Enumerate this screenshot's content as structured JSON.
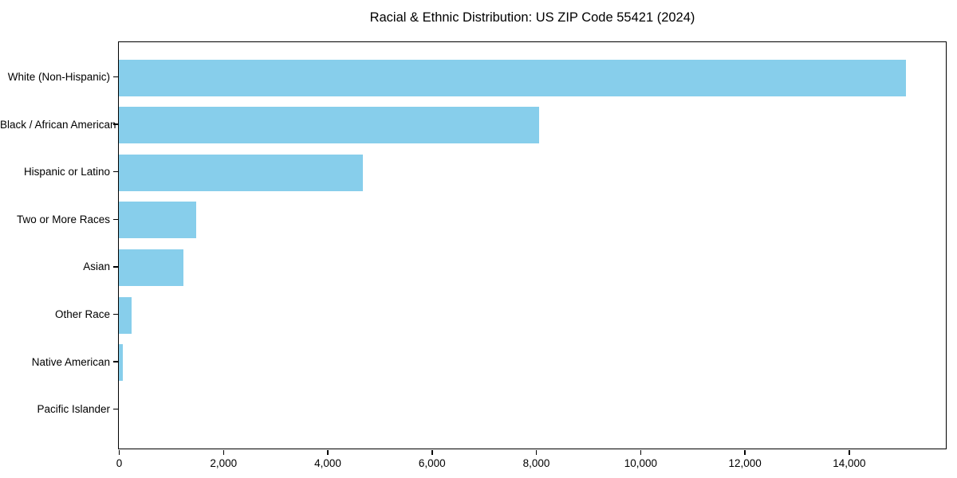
{
  "chart_data": {
    "type": "bar",
    "orientation": "horizontal",
    "title": "Racial & Ethnic Distribution: US ZIP Code 55421 (2024)",
    "categories": [
      "White (Non-Hispanic)",
      "Black / African American",
      "Hispanic or Latino",
      "Two or More Races",
      "Asian",
      "Other Race",
      "Native American",
      "Pacific Islander"
    ],
    "values": [
      15090,
      8055,
      4680,
      1485,
      1240,
      245,
      75,
      0
    ],
    "xlabel": "",
    "ylabel": "",
    "xlim": [
      0,
      15860
    ],
    "x_ticks": [
      0,
      2000,
      4000,
      6000,
      8000,
      10000,
      12000,
      14000
    ],
    "x_tick_labels": [
      "0",
      "2,000",
      "4,000",
      "6,000",
      "8,000",
      "10,000",
      "12,000",
      "14,000"
    ],
    "bar_color": "#87CEEB",
    "axis_color": "#000000",
    "text_color": "#000000",
    "background": "#FFFFFF",
    "grid": false,
    "legend": "none"
  }
}
